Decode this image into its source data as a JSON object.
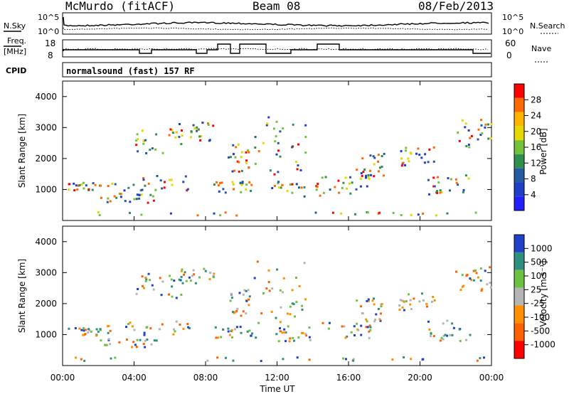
{
  "header": {
    "station": "McMurdo (fitACF)",
    "beam": "Beam 08",
    "date": "08/Feb/2013",
    "program": "normalsound (fast) 157 RF"
  },
  "labels": {
    "nsky": "N.Sky",
    "nsearch": "N.Search",
    "freq": "Freq.",
    "freq_unit": "[MHz]",
    "cpid": "CPID",
    "nave": "Nave",
    "nsky_ticks": [
      "10^5",
      "10^0"
    ],
    "freq_ticks": [
      "18",
      "8"
    ],
    "nave_ticks": [
      "60",
      "0"
    ]
  },
  "chart_data": [
    {
      "type": "heatmap",
      "panel": "power",
      "ylabel": "Slant Range [km]",
      "colorbar_label": "Power [dB]",
      "colorbar_ticks": [
        "28",
        "24",
        "20",
        "16",
        "12",
        "8",
        "4"
      ],
      "colorbar_colors": [
        "#ff0000",
        "#ff6a00",
        "#ffb400",
        "#e3d800",
        "#72c23c",
        "#2e8f4e",
        "#245aa0",
        "#1f3fc8",
        "#2020ff"
      ],
      "ylim": [
        0,
        4500
      ],
      "yticks": [
        "1000",
        "2000",
        "3000",
        "4000"
      ],
      "xlim": [
        "00:00",
        "24:00"
      ]
    },
    {
      "type": "heatmap",
      "panel": "velocity",
      "ylabel": "Slant Range [km]",
      "colorbar_label": "Velocity [m s⁻¹]",
      "colorbar_ticks": [
        "1000",
        "500",
        "100",
        "25",
        "-25",
        "-100",
        "-500",
        "-1000"
      ],
      "colorbar_colors": [
        "#2040c8",
        "#2e8f80",
        "#6cc240",
        "#b4b4b4",
        "#ff9000",
        "#ff6000",
        "#ff0000"
      ],
      "ylim": [
        0,
        4500
      ],
      "yticks": [
        "1000",
        "2000",
        "3000",
        "4000"
      ],
      "xlabel": "Time UT",
      "xticks": [
        "00:00",
        "04:00",
        "08:00",
        "12:00",
        "16:00",
        "20:00",
        "00:00"
      ]
    }
  ]
}
